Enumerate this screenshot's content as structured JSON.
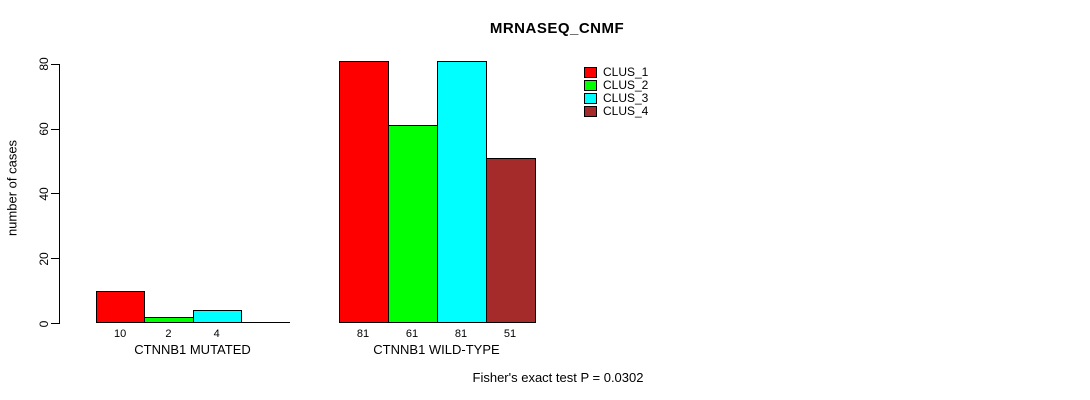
{
  "chart_data": {
    "type": "bar",
    "title": "MRNASEQ_CNMF",
    "xlabel": "",
    "ylabel": "number of cases",
    "ylim": [
      0,
      80
    ],
    "yticks": [
      0,
      20,
      40,
      60,
      80
    ],
    "grid": false,
    "legend_position": "top-right",
    "background_color": "#ffffff",
    "axis_color": "#000000",
    "categories": [
      "CTNNB1 MUTATED",
      "CTNNB1 WILD-TYPE"
    ],
    "series": [
      {
        "name": "CLUS_1",
        "color": "#ff0000",
        "values": [
          10,
          81
        ]
      },
      {
        "name": "CLUS_2",
        "color": "#00ff00",
        "values": [
          2,
          61
        ]
      },
      {
        "name": "CLUS_3",
        "color": "#00ffff",
        "values": [
          4,
          81
        ]
      },
      {
        "name": "CLUS_4",
        "color": "#a52a2a",
        "values": [
          0,
          51
        ]
      }
    ],
    "bar_value_labels_shown": true,
    "zero_value_labels_hidden": true,
    "annotation": "Fisher's exact test P = 0.0302"
  }
}
